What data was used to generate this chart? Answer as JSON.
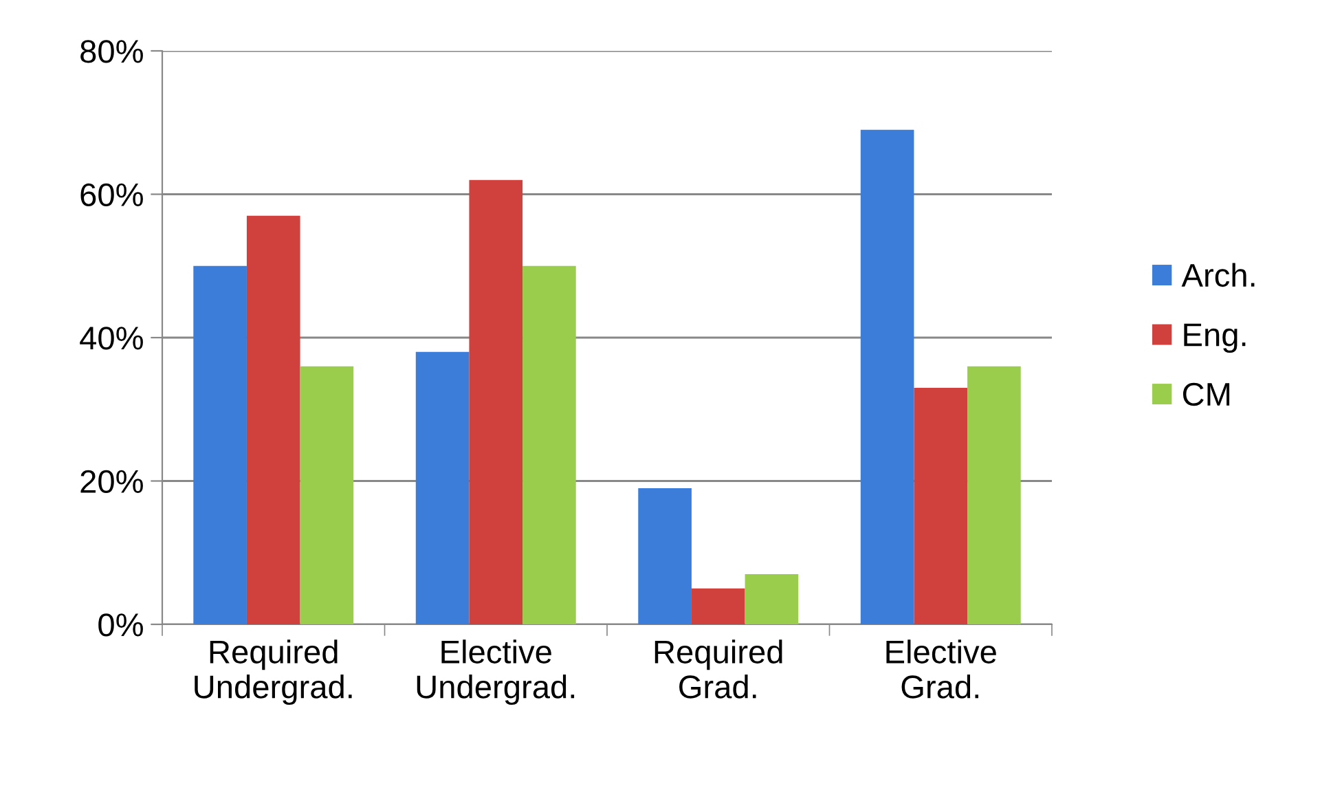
{
  "chart_data": {
    "type": "bar",
    "categories": [
      "Required\nUndergrad.",
      "Elective\nUndergrad.",
      "Required\nGrad.",
      "Elective\nGrad."
    ],
    "series": [
      {
        "name": "Arch.",
        "color": "#3b7dd8",
        "values": [
          50,
          38,
          19,
          69
        ]
      },
      {
        "name": "Eng.",
        "color": "#d0413d",
        "values": [
          57,
          62,
          5,
          33
        ]
      },
      {
        "name": "CM",
        "color": "#9acd4c",
        "values": [
          36,
          50,
          7,
          36
        ]
      }
    ],
    "ylim": [
      0,
      80
    ],
    "yticks": [
      {
        "value": 0,
        "label": "0%"
      },
      {
        "value": 20,
        "label": "20%"
      },
      {
        "value": 40,
        "label": "40%"
      },
      {
        "value": 60,
        "label": "60%"
      },
      {
        "value": 80,
        "label": "80%"
      }
    ],
    "grid": "y",
    "legend": "right"
  }
}
